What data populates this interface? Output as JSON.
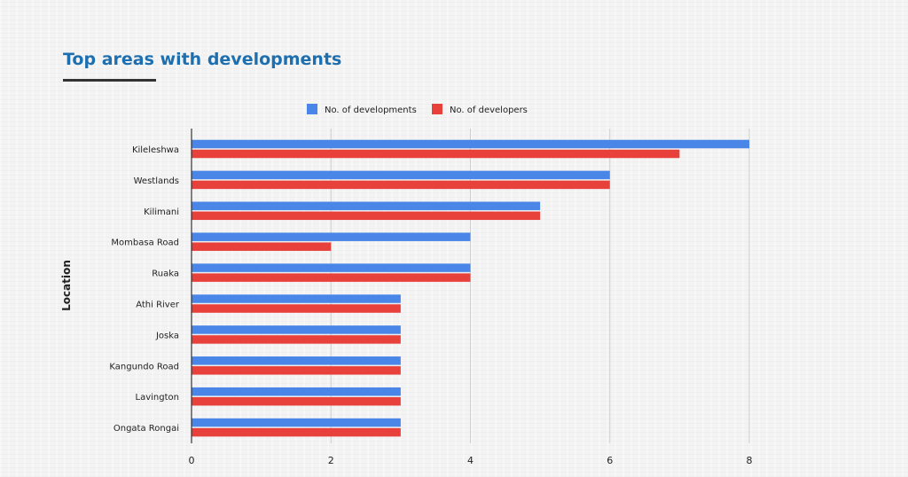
{
  "page": {
    "title": "Top areas with developments"
  },
  "chart_data": {
    "type": "bar",
    "orientation": "horizontal",
    "title": "Top areas with developments",
    "ylabel": "Location",
    "xlabel": "",
    "xlim": [
      0,
      8
    ],
    "xticks": [
      0,
      2,
      4,
      6,
      8
    ],
    "grid": true,
    "legend_position": "top-center",
    "categories": [
      "Kileleshwa",
      "Westlands",
      "Kilimani",
      "Mombasa Road",
      "Ruaka",
      "Athi River",
      "Joska",
      "Kangundo Road",
      "Lavington",
      "Ongata Rongai"
    ],
    "series": [
      {
        "name": "No. of developments",
        "color": "#4a86e8",
        "values": [
          8,
          6,
          5,
          4,
          4,
          3,
          3,
          3,
          3,
          3
        ]
      },
      {
        "name": "No. of developers",
        "color": "#e8413c",
        "values": [
          7,
          6,
          5,
          2,
          4,
          3,
          3,
          3,
          3,
          3
        ]
      }
    ]
  }
}
